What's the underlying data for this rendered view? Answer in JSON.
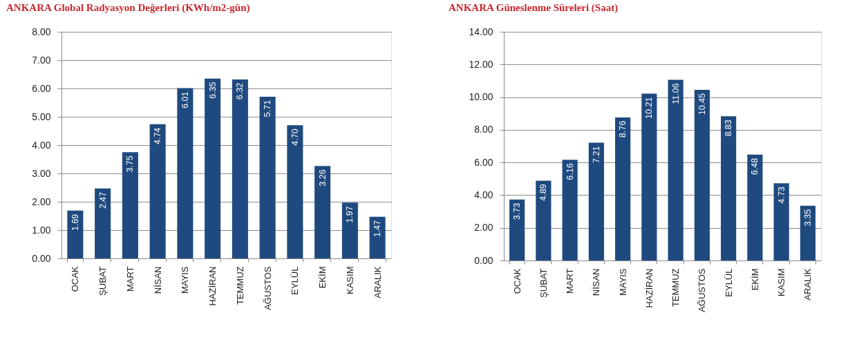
{
  "chart_data": [
    {
      "type": "bar",
      "title": "ANKARA Global Radyasyon Değerleri (KWh/m2-gün)",
      "categories": [
        "OCAK",
        "ŞUBAT",
        "MART",
        "NİSAN",
        "MAYIS",
        "HAZİRAN",
        "TEMMUZ",
        "AĞUSTOS",
        "EYLÜL",
        "EKİM",
        "KASIM",
        "ARALIK"
      ],
      "values": [
        1.69,
        2.47,
        3.75,
        4.74,
        6.01,
        6.35,
        6.32,
        5.71,
        4.7,
        3.26,
        1.97,
        1.47
      ],
      "value_labels": [
        "1.69",
        "2.47",
        "3.75",
        "4.74",
        "6.01",
        "6.35",
        "6.32",
        "5.71",
        "4.70",
        "3.26",
        "1.97",
        "1.47"
      ],
      "color": "#1f4a7f",
      "ylim": [
        0,
        8
      ],
      "yticks": [
        {
          "value": 0,
          "label": "0.00"
        },
        {
          "value": 1,
          "label": "1.00"
        },
        {
          "value": 2,
          "label": "2.00"
        },
        {
          "value": 3,
          "label": "3.00"
        },
        {
          "value": 4,
          "label": "4.00"
        },
        {
          "value": 5,
          "label": "5.00"
        },
        {
          "value": 6,
          "label": "6.00"
        },
        {
          "value": 7,
          "label": "7.00"
        },
        {
          "value": 8,
          "label": "8.00"
        }
      ],
      "grid": "y"
    },
    {
      "type": "bar",
      "title": "ANKARA Güneslenme Süreleri (Saat)",
      "categories": [
        "OCAK",
        "ŞUBAT",
        "MART",
        "NİSAN",
        "MAYIS",
        "HAZİRAN",
        "TEMMUZ",
        "AĞUSTOS",
        "EYLÜL",
        "EKİM",
        "KASIM",
        "ARALIK"
      ],
      "values": [
        3.73,
        4.89,
        6.16,
        7.21,
        8.76,
        10.21,
        11.06,
        10.45,
        8.83,
        6.48,
        4.73,
        3.35
      ],
      "value_labels": [
        "3.73",
        "4.89",
        "6.16",
        "7.21",
        "8.76",
        "10.21",
        "11.06",
        "10.45",
        "8.83",
        "6.48",
        "4.73",
        "3.35"
      ],
      "color": "#1f4a7f",
      "ylim": [
        0,
        14
      ],
      "yticks": [
        {
          "value": 0,
          "label": "0.00"
        },
        {
          "value": 2,
          "label": "2.00"
        },
        {
          "value": 4,
          "label": "4.00"
        },
        {
          "value": 6,
          "label": "6.00"
        },
        {
          "value": 8,
          "label": "8.00"
        },
        {
          "value": 10,
          "label": "10.00"
        },
        {
          "value": 12,
          "label": "12.00"
        },
        {
          "value": 14,
          "label": "14.00"
        }
      ],
      "grid": "y"
    }
  ]
}
